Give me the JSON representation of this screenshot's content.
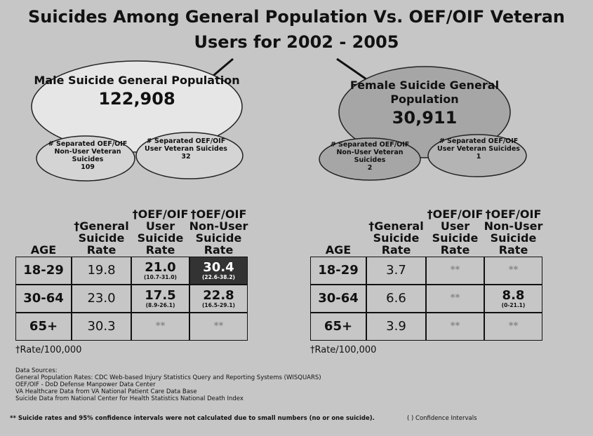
{
  "title": "Suicides Among General Population Vs. OEF/OIF Veteran Users for 2002 - 2005",
  "groups": [
    {
      "label": "Male Suicide General Population",
      "total": "122,908",
      "non_user": {
        "label": "# Separated OEF/OIF Non-User Veteran Suicides",
        "value": 109
      },
      "user": {
        "label": "# Separated OEF/OIF User Veteran Suicides",
        "value": 32
      },
      "table": {
        "headers": [
          "AGE",
          "†General Suicide Rate",
          "†OEF/OIF User Suicide Rate",
          "†OEF/OIF Non-User Suicide Rate"
        ],
        "rows": [
          {
            "age": "18-29",
            "cells": [
              {
                "value": "19.8"
              },
              {
                "value": "21.0",
                "ci": "(10.7-31.0)"
              },
              {
                "value": "30.4",
                "ci": "(22.6-38.2)",
                "highlight": true
              }
            ]
          },
          {
            "age": "30-64",
            "cells": [
              {
                "value": "23.0"
              },
              {
                "value": "17.5",
                "ci": "(8.9-26.1)"
              },
              {
                "value": "22.8",
                "ci": "(16.5-29.1)"
              }
            ]
          },
          {
            "age": "65+",
            "cells": [
              {
                "value": "30.3"
              },
              {
                "value": "**"
              },
              {
                "value": "**"
              }
            ]
          }
        ]
      },
      "footnote": "†Rate/100,000"
    },
    {
      "label": "Female Suicide General Population",
      "total": "30,911",
      "non_user": {
        "label": "# Separated OEF/OIF Non-User Veteran Suicides",
        "value": 2
      },
      "user": {
        "label": "# Separated OEF/OIF User Veteran Suicides",
        "value": 1
      },
      "table": {
        "headers": [
          "AGE",
          "†General Suicide Rate",
          "†OEF/OIF User Suicide Rate",
          "†OEF/OIF Non-User Suicide Rate"
        ],
        "rows": [
          {
            "age": "18-29",
            "cells": [
              {
                "value": "3.7"
              },
              {
                "value": "**"
              },
              {
                "value": "**"
              }
            ]
          },
          {
            "age": "30-64",
            "cells": [
              {
                "value": "6.6"
              },
              {
                "value": "**"
              },
              {
                "value": "8.8",
                "ci": "(0-21.1)"
              }
            ]
          },
          {
            "age": "65+",
            "cells": [
              {
                "value": "3.9"
              },
              {
                "value": "**"
              },
              {
                "value": "**"
              }
            ]
          }
        ]
      },
      "footnote": "†Rate/100,000"
    }
  ],
  "sources": {
    "title": "Data Sources:",
    "lines": [
      "General Population Rates: CDC Web-based Injury Statistics Query and Reporting Systems (WISQUARS)",
      "OEF/OIF - DoD Defense Manpower Data Center",
      "VA Healthcare Data from VA National Patient Care Data Base",
      "Suicide Data from National Center for Health Statistics National Death Index"
    ]
  },
  "notes": [
    "** Suicide rates and 95% confidence intervals were not calculated due to small numbers (no or one suicide).",
    "( ) Confidence Intervals"
  ]
}
